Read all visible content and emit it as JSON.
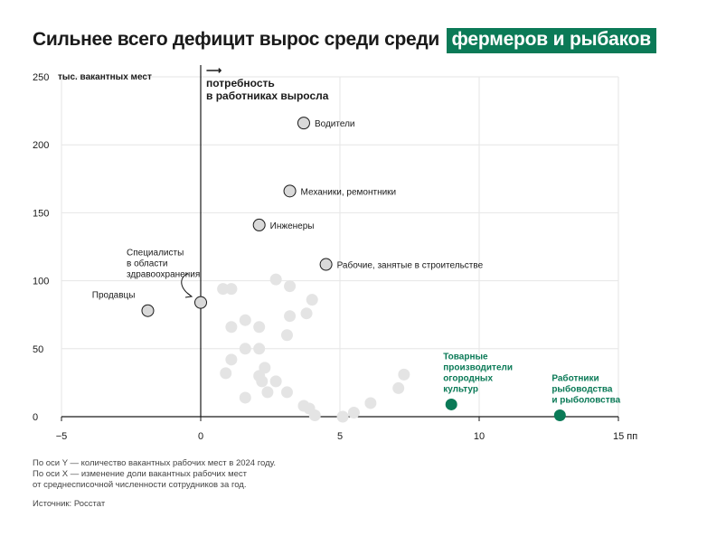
{
  "title": {
    "text": "Сильнее всего дефицит вырос среди среди",
    "highlight": "фермеров и рыбаков",
    "highlight_color": "#0b7a57"
  },
  "annotation": {
    "arrow": "⟶",
    "line1": "потребность",
    "line2": "в работниках выросла"
  },
  "footnote": {
    "line1": "По оси Y — количество вакантных рабочих мест в 2024 году.",
    "line2": "По оси X — изменение доли вакантных рабочих мест",
    "line3": "от среднесписочной численности сотрудников за год."
  },
  "source": "Источник: Росстат",
  "chart_data": {
    "type": "scatter",
    "xlim": [
      -5,
      15
    ],
    "ylim": [
      0,
      250
    ],
    "x_ticks": [
      "−5",
      "0",
      "5",
      "10",
      "15 пп"
    ],
    "x_tick_values": [
      -5,
      0,
      5,
      10,
      15
    ],
    "y_ticks": [
      "0",
      "50",
      "100",
      "150",
      "200",
      "250"
    ],
    "y_tick_values": [
      0,
      50,
      100,
      150,
      200,
      250
    ],
    "ylabel": "тыс. вакантных мест",
    "grid": true,
    "colors": {
      "labeled": "#d9d9d9",
      "labeled_stroke": "#1a1a1a",
      "background": "#e4e4e4",
      "highlight": "#0b7a57"
    },
    "labeled_points": [
      {
        "x": 3.7,
        "y": 216,
        "label": [
          "Водители"
        ]
      },
      {
        "x": 3.2,
        "y": 166,
        "label": [
          "Механики, ремонтники"
        ]
      },
      {
        "x": 2.1,
        "y": 141,
        "label": [
          "Инженеры"
        ]
      },
      {
        "x": 4.5,
        "y": 112,
        "label": [
          "Рабочие, занятые в строительстве"
        ]
      },
      {
        "x": 0,
        "y": 84,
        "label": [
          "Специалисты",
          "в области",
          "здравоохранения"
        ]
      },
      {
        "x": -1.9,
        "y": 78,
        "label": [
          "Продавцы"
        ]
      }
    ],
    "highlighted_points": [
      {
        "x": 9.0,
        "y": 9,
        "label": [
          "Товарные",
          "производители",
          "огородных",
          "культур"
        ]
      },
      {
        "x": 12.9,
        "y": 1,
        "label": [
          "Работники",
          "рыбоводства",
          "и рыболовства"
        ]
      }
    ],
    "background_points": [
      [
        0.8,
        94
      ],
      [
        1.1,
        94
      ],
      [
        2.7,
        101
      ],
      [
        3.2,
        96
      ],
      [
        4.0,
        86
      ],
      [
        3.8,
        76
      ],
      [
        3.2,
        74
      ],
      [
        1.6,
        71
      ],
      [
        1.1,
        66
      ],
      [
        2.1,
        66
      ],
      [
        3.1,
        60
      ],
      [
        1.6,
        50
      ],
      [
        2.1,
        50
      ],
      [
        1.1,
        42
      ],
      [
        2.3,
        36
      ],
      [
        0.9,
        32
      ],
      [
        2.1,
        30
      ],
      [
        2.2,
        26
      ],
      [
        2.7,
        26
      ],
      [
        2.4,
        18
      ],
      [
        3.1,
        18
      ],
      [
        1.6,
        14
      ],
      [
        3.7,
        8
      ],
      [
        3.9,
        6
      ],
      [
        4.1,
        1
      ],
      [
        5.1,
        0
      ],
      [
        5.5,
        3
      ],
      [
        6.1,
        10
      ],
      [
        7.1,
        21
      ],
      [
        7.3,
        31
      ]
    ]
  }
}
